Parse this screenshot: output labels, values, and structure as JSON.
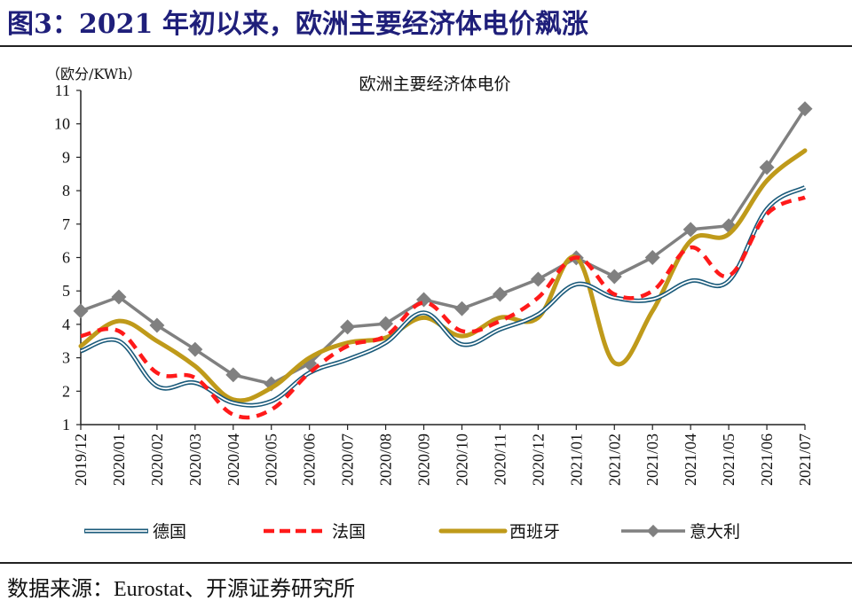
{
  "header": {
    "figure_title": "图3：2021 年初以来，欧洲主要经济体电价飙涨"
  },
  "footer": {
    "source": "数据来源：Eurostat、开源证券研究所"
  },
  "colors": {
    "germany_outer": "#1a5a7a",
    "germany_inner": "#ffffff",
    "france": "#ff1a1a",
    "spain": "#bf9a1a",
    "italy": "#808080",
    "axis": "#222222",
    "title": "#1f1f7a"
  },
  "chart_data": {
    "type": "line",
    "title": "欧洲主要经济体电价",
    "ylabel": "（欧分/KWh）",
    "xlabel": "",
    "ylim": [
      1,
      11
    ],
    "yticks": [
      1,
      2,
      3,
      4,
      5,
      6,
      7,
      8,
      9,
      10,
      11
    ],
    "grid": false,
    "legend_position": "bottom",
    "categories": [
      "2019/12",
      "2020/01",
      "2020/02",
      "2020/03",
      "2020/04",
      "2020/05",
      "2020/06",
      "2020/07",
      "2020/08",
      "2020/09",
      "2020/10",
      "2020/11",
      "2020/12",
      "2021/01",
      "2021/02",
      "2021/03",
      "2021/04",
      "2021/05",
      "2021/06",
      "2021/07"
    ],
    "series": [
      {
        "name": "德国",
        "style": "double-line",
        "values": [
          3.2,
          3.5,
          2.15,
          2.25,
          1.65,
          1.7,
          2.55,
          2.95,
          3.45,
          4.35,
          3.4,
          3.85,
          4.3,
          5.2,
          4.8,
          4.75,
          5.3,
          5.3,
          7.45,
          8.1
        ]
      },
      {
        "name": "法国",
        "style": "dashed",
        "values": [
          3.65,
          3.8,
          2.55,
          2.4,
          1.3,
          1.45,
          2.55,
          3.35,
          3.65,
          4.65,
          3.8,
          4.1,
          4.8,
          6.0,
          4.9,
          5.0,
          6.3,
          5.45,
          7.3,
          7.8
        ]
      },
      {
        "name": "西班牙",
        "style": "thick-solid",
        "values": [
          3.35,
          4.1,
          3.5,
          2.75,
          1.75,
          2.1,
          3.0,
          3.45,
          3.6,
          4.2,
          3.65,
          4.2,
          4.2,
          6.0,
          2.85,
          4.4,
          6.5,
          6.7,
          8.3,
          9.2
        ]
      },
      {
        "name": "意大利",
        "style": "line-diamond-markers",
        "values": [
          4.4,
          4.82,
          3.97,
          3.25,
          2.49,
          2.22,
          2.83,
          3.92,
          4.02,
          4.74,
          4.47,
          4.9,
          5.35,
          5.99,
          5.43,
          6.0,
          6.84,
          6.95,
          8.7,
          10.45
        ]
      }
    ]
  }
}
